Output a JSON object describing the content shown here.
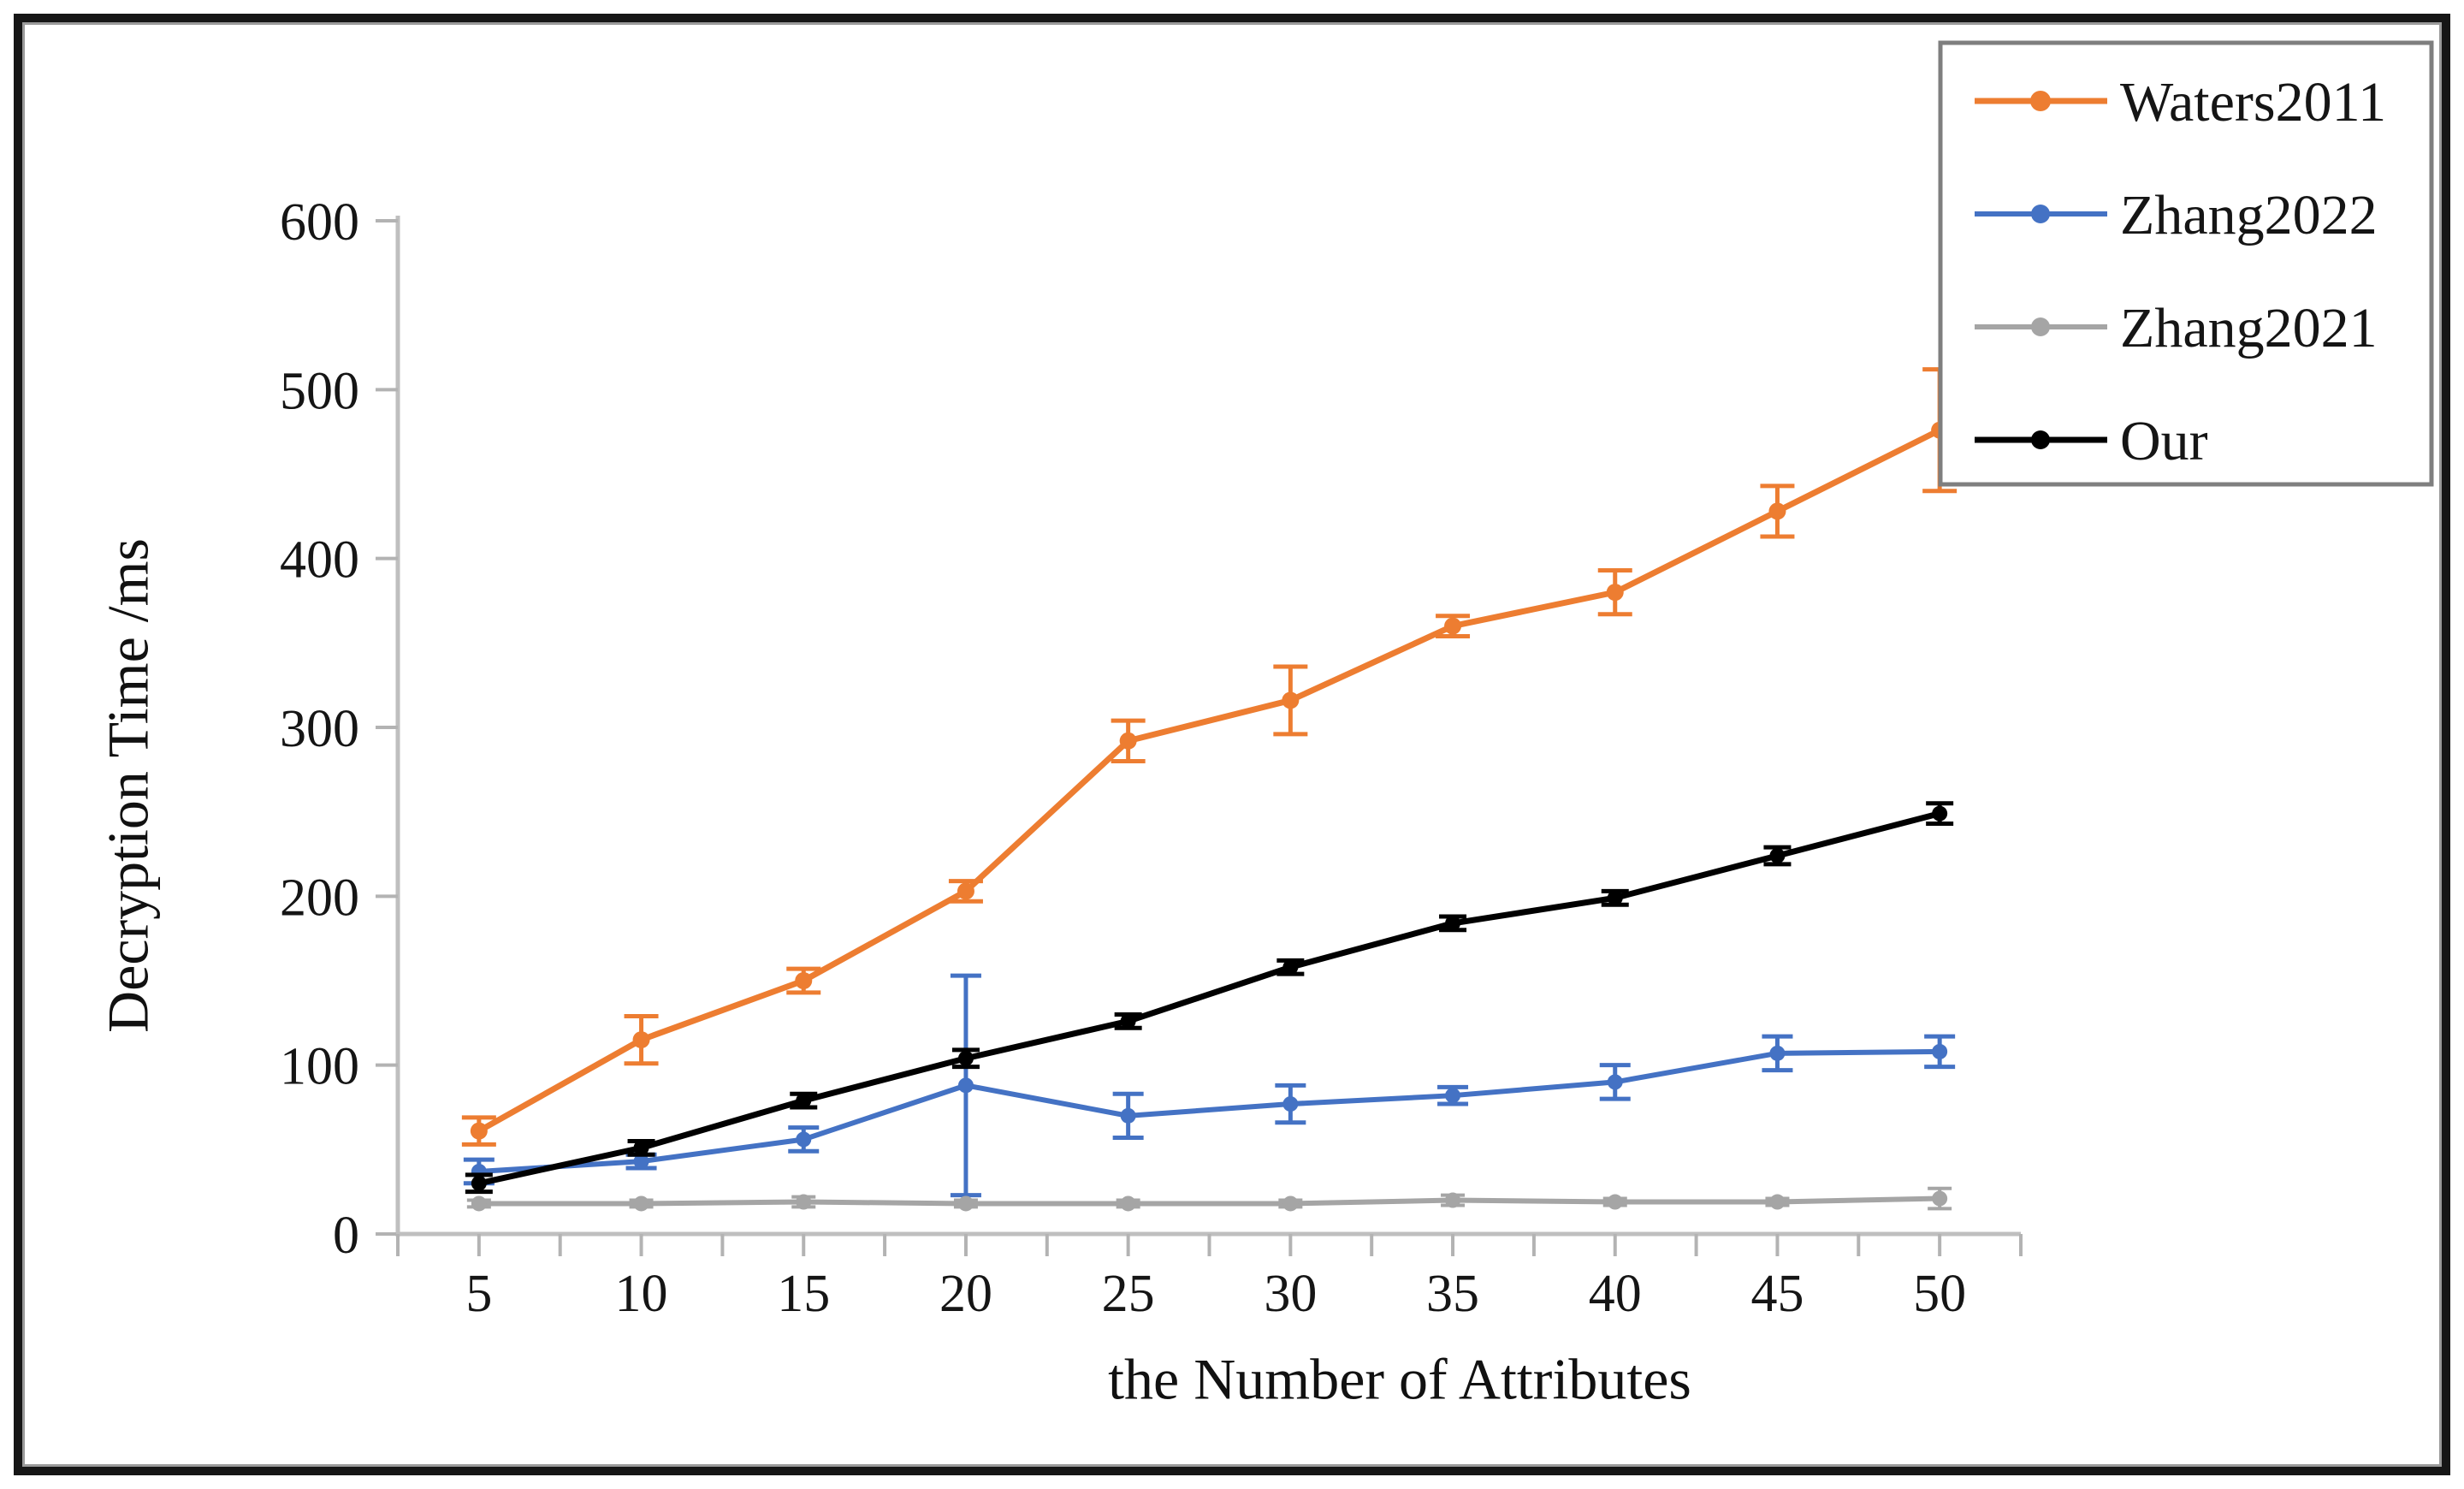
{
  "figure": {
    "type_label": "error-bar line chart",
    "background": "#FFFFFF",
    "frame": {
      "outer_border_color": "#161616",
      "inner_border_color": "#9A9A9A"
    }
  },
  "axes": {
    "x_title": "the Number of Attributes",
    "y_title": "Decryption Time /ms",
    "axis_line_color": "#BFBFBF",
    "tick_color": "#B3B3B3",
    "label_color": "#151515"
  },
  "legend": {
    "border_color": "#7F7F7F",
    "background": "#FFFFFF",
    "entries": [
      "Waters2011",
      "Zhang2022",
      "Zhang2021",
      "Our"
    ]
  },
  "chart_data": {
    "type": "line",
    "title": "",
    "xlabel": "the Number of Attributes",
    "ylabel": "Decryption Time /ms",
    "x": [
      5,
      10,
      15,
      20,
      25,
      30,
      35,
      40,
      45,
      50
    ],
    "x_minor_tick_step": 2.5,
    "xlim": [
      2.5,
      52.5
    ],
    "ylim": [
      0,
      600
    ],
    "y_ticks": [
      0,
      100,
      200,
      300,
      400,
      500,
      600
    ],
    "grid": false,
    "legend_position": "top-right",
    "error_bars": true,
    "series": [
      {
        "name": "Waters2011",
        "color": "#ED7D31",
        "values": [
          61,
          115,
          150,
          203,
          292,
          316,
          360,
          380,
          428,
          476
        ],
        "errors": [
          8,
          14,
          7,
          6,
          12,
          20,
          6,
          13,
          15,
          36
        ]
      },
      {
        "name": "Zhang2022",
        "color": "#4472C4",
        "values": [
          37,
          43,
          56,
          88,
          70,
          77,
          82,
          90,
          107,
          108
        ],
        "errors": [
          7,
          4,
          7,
          65,
          13,
          11,
          5,
          10,
          10,
          9
        ]
      },
      {
        "name": "Zhang2021",
        "color": "#A5A5A5",
        "values": [
          18,
          18,
          19,
          18,
          18,
          18,
          20,
          19,
          19,
          21
        ],
        "errors": [
          2,
          2,
          3,
          2,
          2,
          2,
          3,
          2,
          2,
          6
        ]
      },
      {
        "name": "Our",
        "color": "#000000",
        "values": [
          30,
          51,
          79,
          104,
          126,
          158,
          184,
          199,
          224,
          249
        ],
        "errors": [
          5,
          4,
          4,
          5,
          4,
          4,
          4,
          4,
          5,
          6
        ]
      }
    ]
  }
}
